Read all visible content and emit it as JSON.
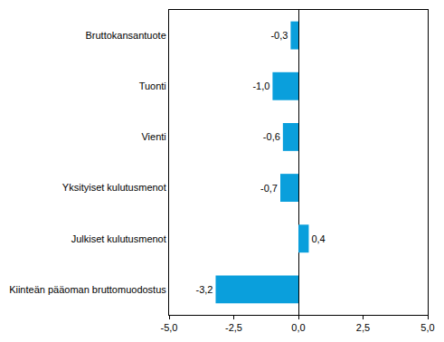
{
  "chart_data": {
    "type": "bar",
    "orientation": "horizontal",
    "categories": [
      "Bruttokansantuote",
      "Tuonti",
      "Vienti",
      "Yksityiset kulutusmenot",
      "Julkiset kulutusmenot",
      "Kiinteän pääoman bruttomuodostus"
    ],
    "values": [
      -0.3,
      -1.0,
      -0.6,
      -0.7,
      0.4,
      -3.2
    ],
    "value_labels": [
      "-0,3",
      "-1,0",
      "-0,6",
      "-0,7",
      "0,4",
      "-3,2"
    ],
    "data_labels": true,
    "color": "#0a9fdc",
    "xlim": [
      -5,
      5
    ],
    "xticks": [
      {
        "value": -5,
        "label": "-5,0"
      },
      {
        "value": -2.5,
        "label": "-2,5"
      },
      {
        "value": 0,
        "label": "0,0"
      },
      {
        "value": 2.5,
        "label": "2,5"
      },
      {
        "value": 5,
        "label": "5,0"
      }
    ],
    "grid": false
  }
}
